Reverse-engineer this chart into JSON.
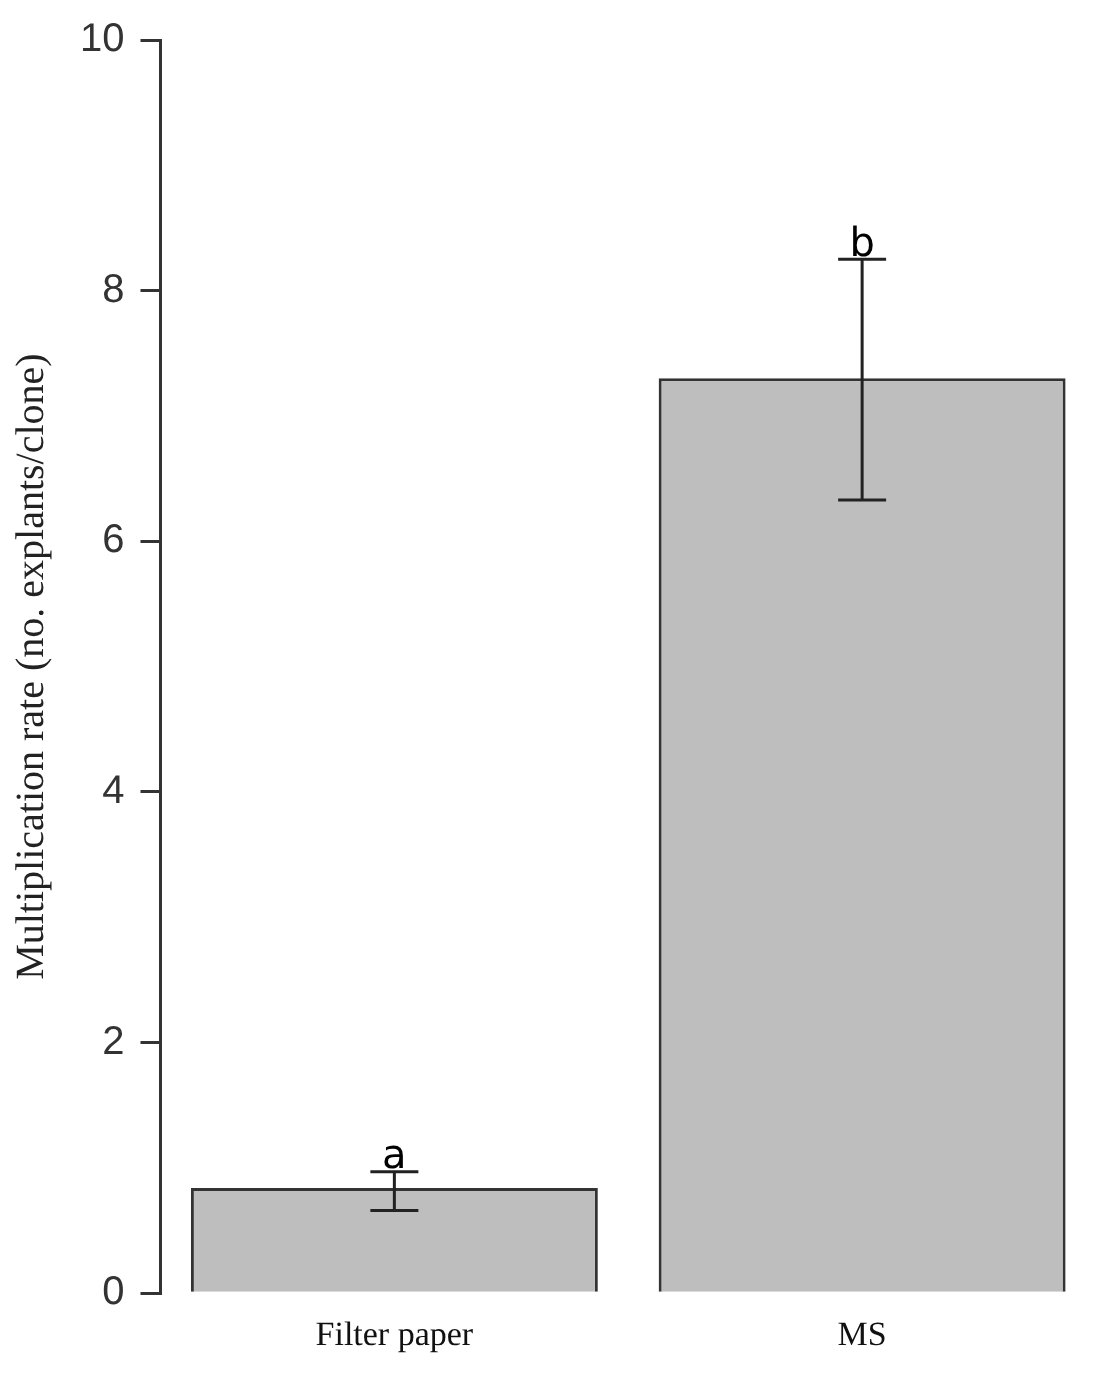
{
  "chart_data": {
    "type": "bar",
    "ylabel": "Multiplication rate (no. explants/clone)",
    "categories": [
      "Filter paper",
      "MS"
    ],
    "values": [
      0.84,
      7.3
    ],
    "errors": [
      [
        0.66,
        0.97
      ],
      [
        6.33,
        8.25
      ]
    ],
    "color": "#bebebe",
    "ylim": [
      0,
      10
    ],
    "yticks": [
      0,
      2,
      4,
      6,
      8,
      10
    ],
    "grid": false,
    "annotations": [
      {
        "text": "a",
        "x": "Filter paper",
        "y": 0.97
      },
      {
        "text": "b",
        "x": "MS",
        "y": 8.25
      }
    ]
  }
}
